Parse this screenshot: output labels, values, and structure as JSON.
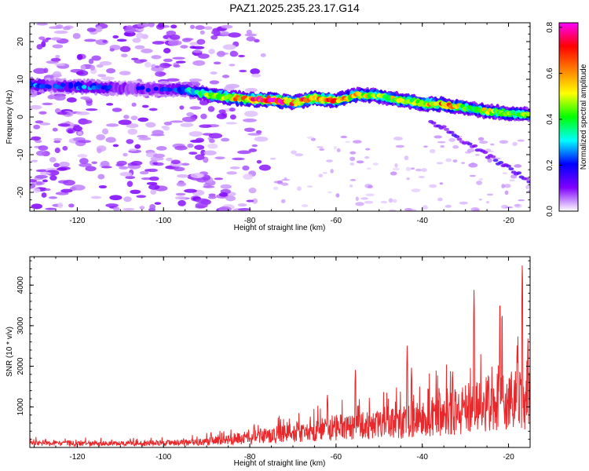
{
  "title": "PAZ1.2025.235.23.17.G14",
  "chart_data": [
    {
      "type": "heatmap",
      "xlabel": "Height of straight line (km)",
      "ylabel": "Frequency (Hz)",
      "xlim": [
        -131,
        -15
      ],
      "ylim": [
        -25,
        25
      ],
      "xticks": [
        -120,
        -100,
        -80,
        -60,
        -40,
        -20
      ],
      "yticks": [
        -20,
        -10,
        0,
        10,
        20
      ],
      "colorbar": {
        "label": "Normalized spectral amplitude",
        "range": [
          0,
          0.82
        ],
        "ticks": [
          0.0,
          0.2,
          0.4,
          0.6,
          0.8
        ],
        "tick_labels": [
          "0.0",
          "0.2",
          "0.4",
          "0.6",
          "0.8"
        ],
        "colormap": [
          "#ffffff",
          "#8000ff",
          "#0000ff",
          "#00ffff",
          "#00ff00",
          "#ffff00",
          "#ff8000",
          "#ff0000",
          "#ff00ff"
        ]
      },
      "ridge": [
        {
          "x": -130,
          "f": 8.5,
          "a": 0.25
        },
        {
          "x": -125,
          "f": 8.2,
          "a": 0.2
        },
        {
          "x": -118,
          "f": 8.0,
          "a": 0.25
        },
        {
          "x": -110,
          "f": 7.6,
          "a": 0.18
        },
        {
          "x": -100,
          "f": 7.3,
          "a": 0.2
        },
        {
          "x": -95,
          "f": 7.2,
          "a": 0.25
        },
        {
          "x": -90,
          "f": 6.0,
          "a": 0.45
        },
        {
          "x": -85,
          "f": 5.2,
          "a": 0.55
        },
        {
          "x": -80,
          "f": 4.7,
          "a": 0.6
        },
        {
          "x": -75,
          "f": 4.5,
          "a": 0.78
        },
        {
          "x": -70,
          "f": 3.8,
          "a": 0.6
        },
        {
          "x": -65,
          "f": 5.0,
          "a": 0.65
        },
        {
          "x": -60,
          "f": 4.3,
          "a": 0.6
        },
        {
          "x": -55,
          "f": 6.0,
          "a": 0.5
        },
        {
          "x": -50,
          "f": 5.5,
          "a": 0.45
        },
        {
          "x": -45,
          "f": 4.5,
          "a": 0.5
        },
        {
          "x": -40,
          "f": 3.5,
          "a": 0.5
        },
        {
          "x": -35,
          "f": 3.3,
          "a": 0.6
        },
        {
          "x": -30,
          "f": 2.5,
          "a": 0.45
        },
        {
          "x": -25,
          "f": 1.5,
          "a": 0.5
        },
        {
          "x": -20,
          "f": 1.0,
          "a": 0.45
        },
        {
          "x": -15,
          "f": 0.5,
          "a": 0.4
        }
      ]
    },
    {
      "type": "line",
      "xlabel": "Height of straight line (km)",
      "ylabel": "SNR (10 * v/v)",
      "xlim": [
        -131,
        -15
      ],
      "ylim": [
        0,
        4700
      ],
      "xticks": [
        -120,
        -100,
        -80,
        -60,
        -40,
        -20
      ],
      "yticks": [
        1000,
        2000,
        3000,
        4000
      ],
      "line_color": "#e8282b",
      "envelope": [
        {
          "x": -131,
          "y": 150
        },
        {
          "x": -120,
          "y": 140
        },
        {
          "x": -110,
          "y": 130
        },
        {
          "x": -100,
          "y": 150
        },
        {
          "x": -90,
          "y": 200
        },
        {
          "x": -85,
          "y": 280
        },
        {
          "x": -80,
          "y": 340
        },
        {
          "x": -75,
          "y": 420
        },
        {
          "x": -70,
          "y": 500
        },
        {
          "x": -65,
          "y": 580
        },
        {
          "x": -60,
          "y": 680
        },
        {
          "x": -55,
          "y": 720
        },
        {
          "x": -50,
          "y": 780
        },
        {
          "x": -45,
          "y": 850
        },
        {
          "x": -40,
          "y": 950
        },
        {
          "x": -35,
          "y": 1150
        },
        {
          "x": -30,
          "y": 1350
        },
        {
          "x": -25,
          "y": 1500
        },
        {
          "x": -20,
          "y": 1700
        },
        {
          "x": -15,
          "y": 1800
        }
      ],
      "peaks": [
        {
          "x": -89,
          "y": 380
        },
        {
          "x": -79,
          "y": 600
        },
        {
          "x": -62,
          "y": 1350
        },
        {
          "x": -55.5,
          "y": 1980
        },
        {
          "x": -43.5,
          "y": 2520
        },
        {
          "x": -42.5,
          "y": 2000
        },
        {
          "x": -36,
          "y": 1450
        },
        {
          "x": -33,
          "y": 1950
        },
        {
          "x": -28,
          "y": 3950
        },
        {
          "x": -22,
          "y": 3800
        },
        {
          "x": -21.5,
          "y": 3500
        },
        {
          "x": -18,
          "y": 2600
        },
        {
          "x": -16.8,
          "y": 4700
        },
        {
          "x": -15.5,
          "y": 2700
        }
      ]
    }
  ]
}
